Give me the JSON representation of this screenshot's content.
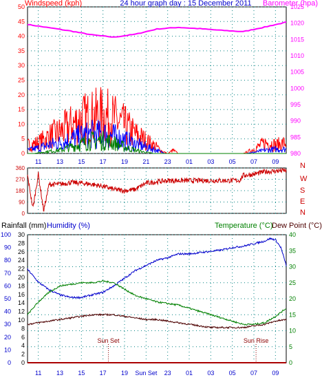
{
  "chart_data": [
    {
      "panel": "wind_baro",
      "type": "line",
      "title": "24 hour graph day : 15 December 2011",
      "ylabel_left": "Windspeed (kph)",
      "ylabel_right": "Barometer (hpa)",
      "ylim_left": [
        0,
        50
      ],
      "ylim_right": [
        980,
        1025
      ],
      "yticks_left": [
        "0",
        "5",
        "10",
        "15",
        "20",
        "25",
        "30",
        "35",
        "40",
        "45",
        "50"
      ],
      "yticks_right": [
        "980",
        "985",
        "990",
        "995",
        "1000",
        "1005",
        "1010",
        "1015",
        "1020",
        "1025"
      ],
      "xticks": [
        "11",
        "13",
        "15",
        "17",
        "19",
        "21",
        "23",
        "01",
        "03",
        "05",
        "07",
        "09"
      ],
      "x_hours_since_start": [
        1,
        3,
        5,
        7,
        9,
        11,
        13,
        15,
        17,
        19,
        21,
        23
      ],
      "x_range_hours": [
        0,
        24
      ],
      "series": [
        {
          "id": "barometer",
          "axis": "right",
          "color": "#ff00ff",
          "x": [
            0,
            2,
            4,
            6,
            8,
            10,
            12,
            14,
            16,
            18,
            20,
            22,
            24
          ],
          "values": [
            1019.6,
            1018.6,
            1017.6,
            1016.4,
            1015.7,
            1016.6,
            1018.2,
            1018.7,
            1018.3,
            1017.8,
            1017.4,
            1018.8,
            1020.3
          ]
        },
        {
          "id": "wind_gust",
          "axis": "left",
          "color": "#ff0000",
          "x": [
            0,
            1,
            2,
            3,
            4,
            5,
            6,
            7,
            8,
            9,
            10,
            11,
            12,
            12.5,
            13,
            13.5,
            14,
            15,
            16,
            17,
            18,
            19,
            20,
            21,
            22,
            22.5,
            23,
            24
          ],
          "values": [
            4,
            5,
            8,
            10,
            13,
            16,
            17,
            18,
            16,
            13,
            9,
            6,
            3,
            1,
            0,
            1.5,
            0,
            0,
            0,
            0,
            0,
            0,
            0,
            2,
            5,
            5,
            4,
            5
          ]
        },
        {
          "id": "wind_avg",
          "axis": "left",
          "color": "#0000ff",
          "x": [
            0,
            1,
            2,
            3,
            4,
            5,
            6,
            7,
            8,
            9,
            10,
            11,
            12,
            12.5,
            13,
            14,
            15,
            16,
            17,
            18,
            19,
            20,
            21,
            22,
            23,
            24
          ],
          "values": [
            1.5,
            2.5,
            4,
            5,
            6.5,
            8,
            9,
            9,
            8,
            6.5,
            4.5,
            3,
            1.5,
            0.5,
            0,
            0,
            0,
            0,
            0,
            0,
            0,
            0,
            0.5,
            1.5,
            2,
            2
          ]
        },
        {
          "id": "wind_green",
          "axis": "left",
          "color": "#008000",
          "x": [
            0,
            1,
            2,
            3,
            4,
            5,
            6,
            7,
            8,
            9,
            10,
            11,
            12,
            13,
            24
          ],
          "values": [
            0,
            0.3,
            1,
            1.5,
            3,
            4.5,
            6,
            6,
            5,
            3,
            1.5,
            0.5,
            0,
            0,
            0
          ]
        }
      ]
    },
    {
      "panel": "direction",
      "type": "line",
      "ylim": [
        0,
        360
      ],
      "yticks_left": [
        "0",
        "90",
        "180",
        "270",
        "360"
      ],
      "yticks_mid": [
        "45",
        "135",
        "225",
        "315"
      ],
      "compass": [
        "N",
        "W",
        "S",
        "E",
        "N"
      ],
      "series": [
        {
          "id": "direction",
          "color": "#cc0000",
          "x": [
            0,
            0.5,
            1,
            1.5,
            2,
            3,
            4,
            5,
            6,
            7,
            8,
            9,
            10,
            10.5,
            11,
            12,
            13,
            14,
            15,
            16,
            17,
            18,
            19,
            19.7,
            20,
            21,
            22,
            23,
            24
          ],
          "values": [
            300,
            40,
            310,
            20,
            230,
            230,
            245,
            240,
            230,
            215,
            190,
            180,
            190,
            215,
            240,
            250,
            260,
            260,
            260,
            260,
            260,
            260,
            260,
            262,
            300,
            310,
            330,
            335,
            340
          ]
        }
      ]
    },
    {
      "panel": "temp_hum_rain",
      "type": "line",
      "ylabel_rain": "Rainfall (mm)",
      "ylabel_humidity": "Humidity (%)",
      "ylabel_temp": "Temperature (°C)",
      "ylabel_dew": "Dew Point (°C)",
      "yticks_rain": [
        "0",
        "2",
        "4",
        "6",
        "8",
        "10",
        "12",
        "14",
        "16",
        "18",
        "20",
        "22",
        "24",
        "26",
        "28",
        "30"
      ],
      "yticks_humidity": [
        "0",
        "10",
        "20",
        "30",
        "40",
        "50",
        "60",
        "70",
        "80",
        "90",
        "100"
      ],
      "yticks_temp": [
        "0",
        "5",
        "10",
        "15",
        "20",
        "25",
        "30",
        "35",
        "40"
      ],
      "ylim_temp": [
        0,
        40
      ],
      "ylim_humidity": [
        0,
        100
      ],
      "annotations": [
        {
          "text": "Sun Set",
          "hour": 7.5
        },
        {
          "text": "Sun Rise",
          "hour": 21.2
        }
      ],
      "xtick_sunset": "Sun Set",
      "series": [
        {
          "id": "humidity",
          "axis": "humidity",
          "color": "#0000cc",
          "x": [
            0,
            1,
            2,
            3,
            4,
            5,
            6,
            7,
            8,
            9,
            10,
            11,
            12,
            13,
            14,
            15,
            16,
            17,
            18,
            19,
            20,
            21,
            22,
            22.5,
            23,
            23.5,
            24
          ],
          "values": [
            73,
            63,
            57,
            53,
            51,
            51,
            53,
            55,
            60,
            66,
            72,
            76,
            80,
            82,
            85,
            85,
            86,
            87,
            88,
            90,
            91,
            93,
            95,
            97,
            96,
            90,
            76
          ]
        },
        {
          "id": "temperature",
          "axis": "temp",
          "color": "#008000",
          "x": [
            0,
            1,
            2,
            3,
            4,
            5,
            6,
            7,
            8,
            9,
            10,
            11,
            12,
            13,
            14,
            15,
            16,
            17,
            18,
            19,
            20,
            21,
            22,
            23,
            24
          ],
          "values": [
            15,
            19,
            22,
            24,
            24.5,
            25,
            25,
            25.5,
            25,
            23,
            21,
            20,
            19,
            18.5,
            18,
            17,
            16,
            15,
            14,
            13,
            12,
            12,
            12.5,
            14.5,
            17
          ]
        },
        {
          "id": "dew_point",
          "axis": "temp",
          "color": "#4d0000",
          "x": [
            0,
            1,
            2,
            3,
            4,
            5,
            6,
            7,
            8,
            9,
            10,
            11,
            12,
            13,
            14,
            15,
            16,
            17,
            18,
            19,
            20,
            21,
            22,
            23,
            24
          ],
          "values": [
            12,
            12.5,
            13,
            13.5,
            14,
            14.5,
            15,
            15,
            15,
            14.5,
            14,
            13.5,
            13.5,
            13,
            12.5,
            12,
            11.5,
            11,
            11,
            11,
            11,
            11.5,
            12,
            13,
            13.5
          ]
        },
        {
          "id": "rainfall",
          "axis": "temp",
          "color": "#aa0000",
          "x": [
            0,
            24
          ],
          "values": [
            0,
            0
          ]
        }
      ]
    }
  ]
}
